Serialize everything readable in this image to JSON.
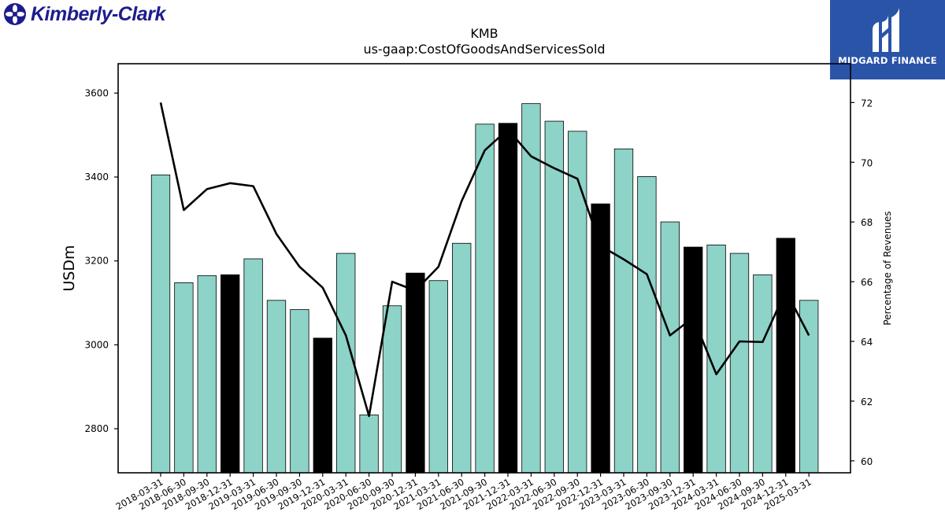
{
  "logo": {
    "text": "Kimberly-Clark"
  },
  "badge": {
    "text": "MIDGARD FINANCE"
  },
  "colors": {
    "bar_default": "#8dd3c7",
    "bar_highlight": "#000000",
    "line": "#000000"
  },
  "chart_data": {
    "type": "bar",
    "title": "KMB",
    "subtitle": "us-gaap:CostOfGoodsAndServicesSold",
    "ylabel": "USDm",
    "y2label": "Percentage of Revenues",
    "ylim": [
      2695,
      3670
    ],
    "y2lim": [
      59.6,
      73.3
    ],
    "yticks": [
      2800,
      3000,
      3200,
      3400,
      3600
    ],
    "y2ticks": [
      60,
      62,
      64,
      66,
      68,
      70,
      72
    ],
    "categories": [
      "2018-03-31",
      "2018-06-30",
      "2018-09-30",
      "2018-12-31",
      "2019-03-31",
      "2019-06-30",
      "2019-09-30",
      "2019-12-31",
      "2020-03-31",
      "2020-06-30",
      "2020-09-30",
      "2020-12-31",
      "2021-03-31",
      "2021-06-30",
      "2021-09-30",
      "2021-12-31",
      "2022-03-31",
      "2022-06-30",
      "2022-09-30",
      "2022-12-31",
      "2023-03-31",
      "2023-06-30",
      "2023-09-30",
      "2023-12-31",
      "2024-03-31",
      "2024-06-30",
      "2024-09-30",
      "2024-12-31",
      "2025-03-31"
    ],
    "series": [
      {
        "kind": "bar",
        "values": [
          3405,
          3148,
          3165,
          3167,
          3205,
          3106,
          3084,
          3016,
          3218,
          2833,
          3093,
          3171,
          3153,
          3242,
          3526,
          3528,
          3575,
          3533,
          3509,
          3336,
          3467,
          3401,
          3293,
          3233,
          3238,
          3218,
          3167,
          3254,
          3106
        ],
        "highlight": [
          false,
          false,
          false,
          true,
          false,
          false,
          false,
          true,
          false,
          false,
          false,
          true,
          false,
          false,
          false,
          true,
          false,
          false,
          false,
          true,
          false,
          false,
          false,
          true,
          false,
          false,
          false,
          true,
          false
        ]
      },
      {
        "kind": "line",
        "axis": "right",
        "values": [
          72.0,
          68.4,
          69.1,
          69.3,
          69.2,
          67.6,
          66.5,
          65.8,
          64.2,
          61.5,
          66.0,
          65.7,
          66.5,
          68.7,
          70.4,
          71.1,
          70.2,
          69.8,
          69.45,
          67.2,
          66.75,
          66.25,
          64.2,
          64.8,
          62.9,
          64.0,
          63.98,
          65.7,
          64.2
        ]
      }
    ]
  }
}
